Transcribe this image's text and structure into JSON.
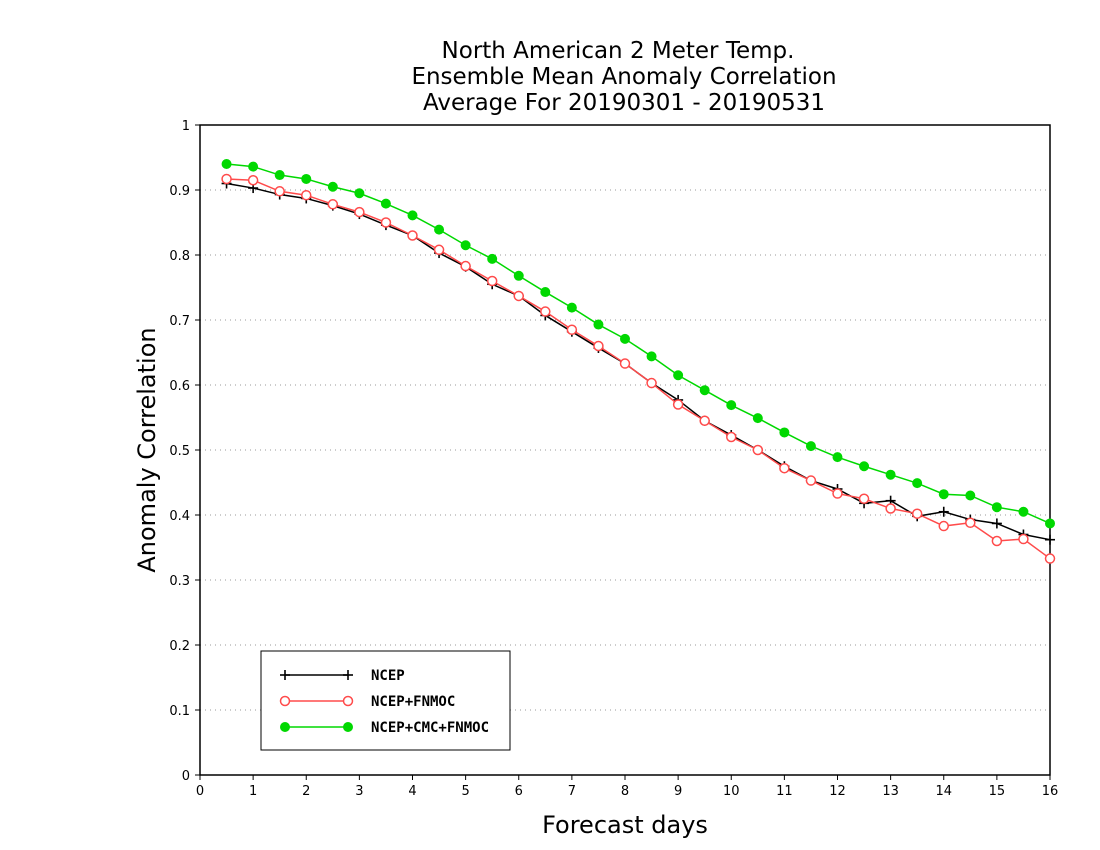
{
  "chart_data": {
    "type": "line",
    "title_lines": [
      "North American 2 Meter Temp.",
      "Ensemble Mean Anomaly Correlation",
      "Average For 20190301 - 20190531"
    ],
    "xlabel": "Forecast days",
    "ylabel": "Anomaly Correlation",
    "xlim": [
      0,
      16
    ],
    "ylim": [
      0,
      1
    ],
    "x_ticks": [
      "0",
      "1",
      "2",
      "3",
      "4",
      "5",
      "6",
      "7",
      "8",
      "9",
      "10",
      "11",
      "12",
      "13",
      "14",
      "15",
      "16"
    ],
    "y_ticks": [
      "0",
      "0.1",
      "0.2",
      "0.3",
      "0.4",
      "0.5",
      "0.6",
      "0.7",
      "0.8",
      "0.9",
      "1"
    ],
    "grid": "horizontal dotted",
    "legend_position": "bottom-left",
    "x": [
      0.5,
      1,
      1.5,
      2,
      2.5,
      3,
      3.5,
      4,
      4.5,
      5,
      5.5,
      6,
      6.5,
      7,
      7.5,
      8,
      8.5,
      9,
      9.5,
      10,
      10.5,
      11,
      11.5,
      12,
      12.5,
      13,
      13.5,
      14,
      14.5,
      15,
      15.5,
      16
    ],
    "series": [
      {
        "name": "NCEP",
        "color": "#000000",
        "marker": "plus",
        "values": [
          0.91,
          0.903,
          0.893,
          0.887,
          0.876,
          0.863,
          0.846,
          0.83,
          0.803,
          0.782,
          0.755,
          0.737,
          0.707,
          0.682,
          0.657,
          0.633,
          0.603,
          0.577,
          0.545,
          0.523,
          0.5,
          0.475,
          0.453,
          0.44,
          0.418,
          0.422,
          0.398,
          0.405,
          0.393,
          0.387,
          0.37,
          0.362
        ]
      },
      {
        "name": "NCEP+FNMOC",
        "color": "#ff4b4b",
        "marker": "open-circle",
        "values": [
          0.917,
          0.915,
          0.898,
          0.892,
          0.878,
          0.866,
          0.85,
          0.83,
          0.808,
          0.783,
          0.76,
          0.737,
          0.713,
          0.685,
          0.66,
          0.633,
          0.603,
          0.57,
          0.545,
          0.52,
          0.5,
          0.472,
          0.453,
          0.433,
          0.425,
          0.41,
          0.402,
          0.383,
          0.388,
          0.36,
          0.363,
          0.333
        ]
      },
      {
        "name": "NCEP+CMC+FNMOC",
        "color": "#00d800",
        "marker": "filled-circle",
        "values": [
          0.94,
          0.936,
          0.923,
          0.917,
          0.905,
          0.895,
          0.879,
          0.861,
          0.839,
          0.815,
          0.794,
          0.768,
          0.743,
          0.719,
          0.693,
          0.671,
          0.644,
          0.615,
          0.592,
          0.569,
          0.549,
          0.527,
          0.506,
          0.489,
          0.475,
          0.462,
          0.449,
          0.432,
          0.43,
          0.412,
          0.405,
          0.387
        ]
      }
    ]
  }
}
